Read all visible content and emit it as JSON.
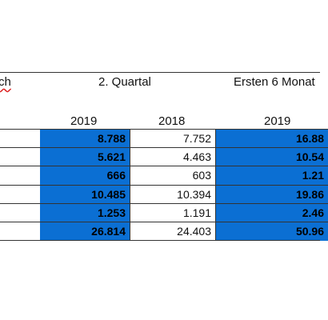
{
  "header": {
    "row_label": "ch",
    "quarter": "2. Quartal",
    "half_year": "Ersten 6 Monat"
  },
  "years": [
    "2019",
    "2018",
    "2019"
  ],
  "table": {
    "rows": [
      [
        "8.788",
        "7.752",
        "16.88"
      ],
      [
        "5.621",
        "4.463",
        "10.54"
      ],
      [
        "666",
        "603",
        "1.21"
      ],
      [
        "10.485",
        "10.394",
        "19.86"
      ],
      [
        "1.253",
        "1.191",
        "2.46"
      ],
      [
        "26.814",
        "24.403",
        "50.96"
      ]
    ]
  }
}
